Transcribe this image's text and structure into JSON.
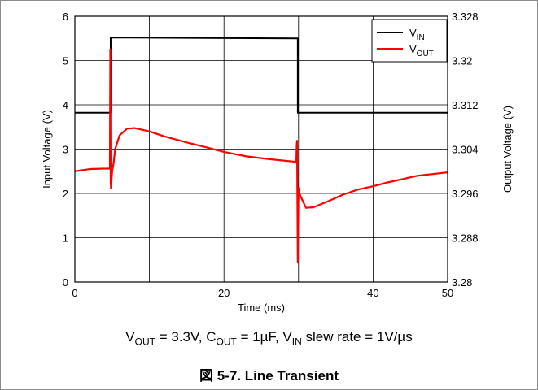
{
  "chart_data": {
    "type": "line",
    "xlabel": "Time (ms)",
    "ylabel_left": "Input Voltage (V)",
    "ylabel_right": "Output Voltage (V)",
    "xlim": [
      0,
      50
    ],
    "ylim_left": [
      0,
      6
    ],
    "ylim_right": [
      3.28,
      3.328
    ],
    "x_ticks": [
      "0",
      "20",
      "40",
      "50"
    ],
    "y_left_ticks": [
      "0",
      "1",
      "2",
      "3",
      "4",
      "5",
      "6"
    ],
    "y_right_ticks": [
      "3.28",
      "3.288",
      "3.296",
      "3.304",
      "3.312",
      "3.32",
      "3.328"
    ],
    "grid": true,
    "legend_position": "top-right",
    "series": [
      {
        "name": "VIN",
        "name_main": "V",
        "name_sub": "IN",
        "axis": "left",
        "color": "#000000",
        "x": [
          0,
          4.8,
          4.8,
          29.9,
          29.9,
          50
        ],
        "y": [
          3.82,
          3.82,
          5.52,
          5.5,
          3.82,
          3.82
        ]
      },
      {
        "name": "VOUT",
        "name_main": "V",
        "name_sub": "OUT",
        "axis": "right",
        "color": "#ff0000",
        "x": [
          0,
          2,
          4.7,
          4.75,
          4.8,
          4.85,
          5.0,
          5.2,
          5.4,
          6.0,
          7.0,
          8.0,
          10.0,
          12.0,
          15.0,
          18.0,
          20.0,
          23.0,
          26.0,
          29.7,
          29.75,
          29.8,
          29.9,
          30.0,
          30.1,
          31.0,
          32.0,
          34.0,
          36.0,
          38.0,
          40.0,
          42.0,
          44.0,
          46.0,
          48.0,
          50.0
        ],
        "y": [
          3.3,
          3.3004,
          3.3005,
          3.322,
          3.298,
          3.297,
          3.3,
          3.3015,
          3.304,
          3.3065,
          3.3077,
          3.3078,
          3.3072,
          3.3063,
          3.3052,
          3.3042,
          3.3035,
          3.3027,
          3.3022,
          3.3017,
          3.3045,
          3.3055,
          3.2835,
          3.297,
          3.296,
          3.2934,
          3.2935,
          3.2946,
          3.2958,
          3.2967,
          3.2973,
          3.298,
          3.2986,
          3.2992,
          3.2995,
          3.2998
        ]
      }
    ]
  },
  "conditions": {
    "p1": "V",
    "s1": "OUT",
    "p2": " = 3.3V, C",
    "s2": "OUT",
    "p3": " = 1µF, V",
    "s3": "IN",
    "p4": " slew rate = 1V/µs"
  },
  "caption": "図 5-7. Line Transient"
}
